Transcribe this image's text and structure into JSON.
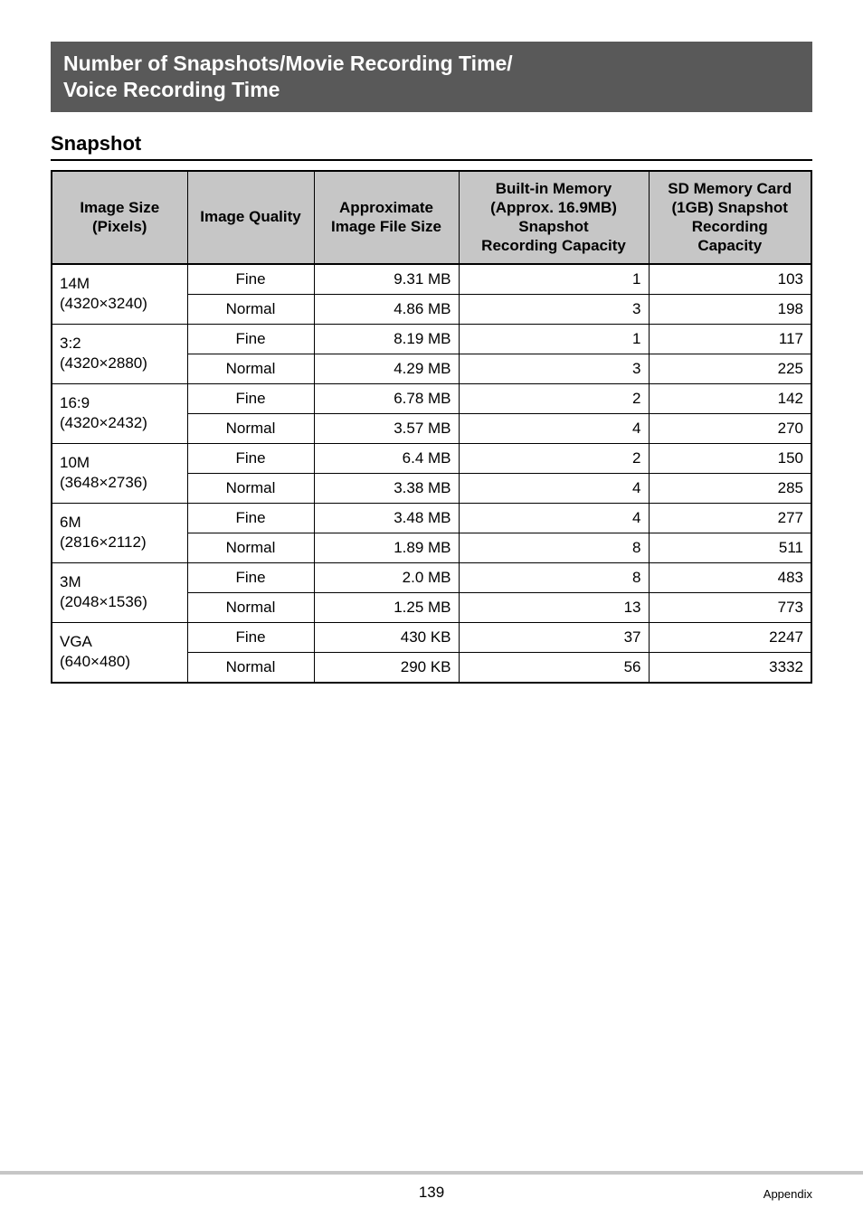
{
  "title_line1": "Number of Snapshots/Movie Recording Time/",
  "title_line2": "Voice Recording Time",
  "subheading": "Snapshot",
  "headers": {
    "image_size": "Image Size\n(Pixels)",
    "image_quality": "Image Quality",
    "approx_file_size": "Approximate\nImage File Size",
    "builtin": "Built-in Memory\n(Approx. 16.9MB)\nSnapshot\nRecording Capacity",
    "sd": "SD Memory Card\n(1GB) Snapshot\nRecording\nCapacity"
  },
  "rows": [
    {
      "size": "14M\n(4320×3240)",
      "q": [
        "Fine",
        "Normal"
      ],
      "file": [
        "9.31 MB",
        "4.86 MB"
      ],
      "bi": [
        "1",
        "3"
      ],
      "sd": [
        "103",
        "198"
      ]
    },
    {
      "size": "3:2\n(4320×2880)",
      "q": [
        "Fine",
        "Normal"
      ],
      "file": [
        "8.19 MB",
        "4.29 MB"
      ],
      "bi": [
        "1",
        "3"
      ],
      "sd": [
        "117",
        "225"
      ]
    },
    {
      "size": "16:9\n(4320×2432)",
      "q": [
        "Fine",
        "Normal"
      ],
      "file": [
        "6.78 MB",
        "3.57 MB"
      ],
      "bi": [
        "2",
        "4"
      ],
      "sd": [
        "142",
        "270"
      ]
    },
    {
      "size": "10M\n(3648×2736)",
      "q": [
        "Fine",
        "Normal"
      ],
      "file": [
        "6.4 MB",
        "3.38 MB"
      ],
      "bi": [
        "2",
        "4"
      ],
      "sd": [
        "150",
        "285"
      ]
    },
    {
      "size": "6M\n(2816×2112)",
      "q": [
        "Fine",
        "Normal"
      ],
      "file": [
        "3.48 MB",
        "1.89 MB"
      ],
      "bi": [
        "4",
        "8"
      ],
      "sd": [
        "277",
        "511"
      ]
    },
    {
      "size": "3M\n(2048×1536)",
      "q": [
        "Fine",
        "Normal"
      ],
      "file": [
        "2.0 MB",
        "1.25 MB"
      ],
      "bi": [
        "8",
        "13"
      ],
      "sd": [
        "483",
        "773"
      ]
    },
    {
      "size": "VGA\n(640×480)",
      "q": [
        "Fine",
        "Normal"
      ],
      "file": [
        "430 KB",
        "290 KB"
      ],
      "bi": [
        "37",
        "56"
      ],
      "sd": [
        "2247",
        "3332"
      ]
    }
  ],
  "page_number": "139",
  "appendix_label": "Appendix"
}
